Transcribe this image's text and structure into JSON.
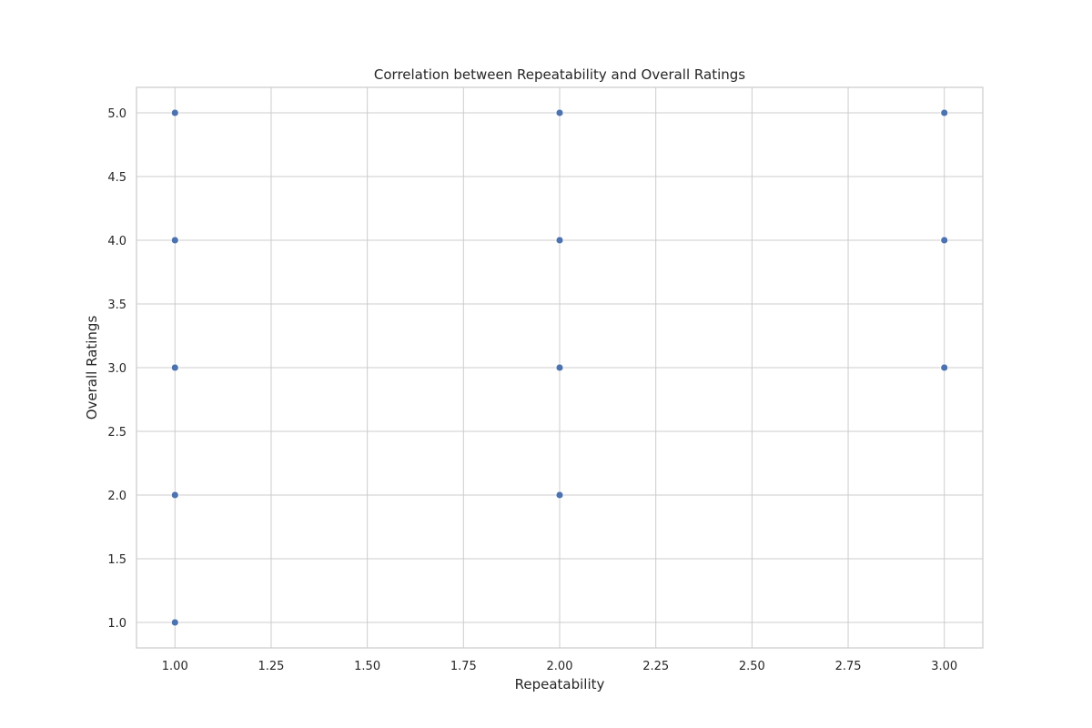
{
  "chart_data": {
    "type": "scatter",
    "title": "Correlation between Repeatability and Overall Ratings",
    "xlabel": "Repeatability",
    "ylabel": "Overall Ratings",
    "xlim": [
      0.9,
      3.1
    ],
    "ylim": [
      0.8,
      5.2
    ],
    "x_ticks": [
      1.0,
      1.25,
      1.5,
      1.75,
      2.0,
      2.25,
      2.5,
      2.75,
      3.0
    ],
    "x_tick_labels": [
      "1.00",
      "1.25",
      "1.50",
      "1.75",
      "2.00",
      "2.25",
      "2.50",
      "2.75",
      "3.00"
    ],
    "y_ticks": [
      1.0,
      1.5,
      2.0,
      2.5,
      3.0,
      3.5,
      4.0,
      4.5,
      5.0
    ],
    "y_tick_labels": [
      "1.0",
      "1.5",
      "2.0",
      "2.5",
      "3.0",
      "3.5",
      "4.0",
      "4.5",
      "5.0"
    ],
    "grid": true,
    "marker_color": "#4c72b0",
    "points": [
      {
        "x": 1,
        "y": 1
      },
      {
        "x": 1,
        "y": 2
      },
      {
        "x": 1,
        "y": 3
      },
      {
        "x": 1,
        "y": 4
      },
      {
        "x": 1,
        "y": 5
      },
      {
        "x": 2,
        "y": 2
      },
      {
        "x": 2,
        "y": 3
      },
      {
        "x": 2,
        "y": 4
      },
      {
        "x": 2,
        "y": 5
      },
      {
        "x": 3,
        "y": 3
      },
      {
        "x": 3,
        "y": 4
      },
      {
        "x": 3,
        "y": 5
      }
    ]
  }
}
